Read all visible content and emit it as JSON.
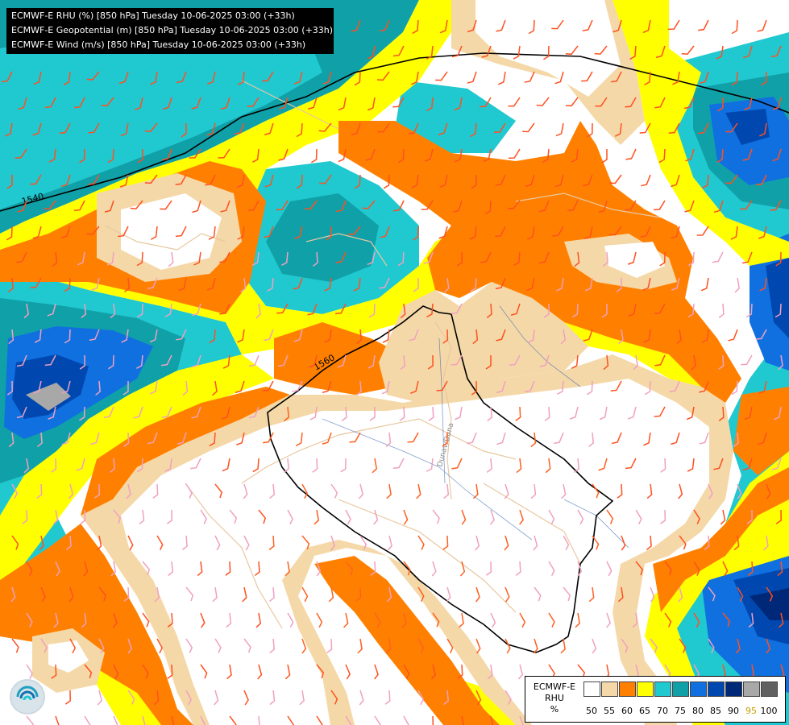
{
  "header": {
    "line1": "ECMWF-E RHU (%) [850 hPa] Tuesday 10-06-2025 03:00 (+33h)",
    "line2": "ECMWF-E Geopotential (m) [850 hPa] Tuesday 10-06-2025 03:00 (+33h)",
    "line3": "ECMWF-E Wind (m/s) [850 hPa] Tuesday 10-06-2025 03:00 (+33h)"
  },
  "map_labels": {
    "contour_1540": "1540",
    "contour_1560": "1560",
    "river_label": "Dunav/Duna"
  },
  "legend": {
    "title_line1": "ECMWF-E",
    "title_line2": "RHU",
    "title_line3": "%",
    "ticks": [
      "50",
      "55",
      "60",
      "65",
      "70",
      "75",
      "80",
      "85",
      "90",
      "95",
      "100"
    ],
    "colors": [
      "#ffffff",
      "#f5d8a8",
      "#ff8000",
      "#ffff00",
      "#20c8d0",
      "#10a0a8",
      "#1070e0",
      "#0048b0",
      "#002878",
      "#a8a8a8",
      "#606060"
    ]
  },
  "logo": {
    "icon": "meteorological-service-logo-icon"
  }
}
